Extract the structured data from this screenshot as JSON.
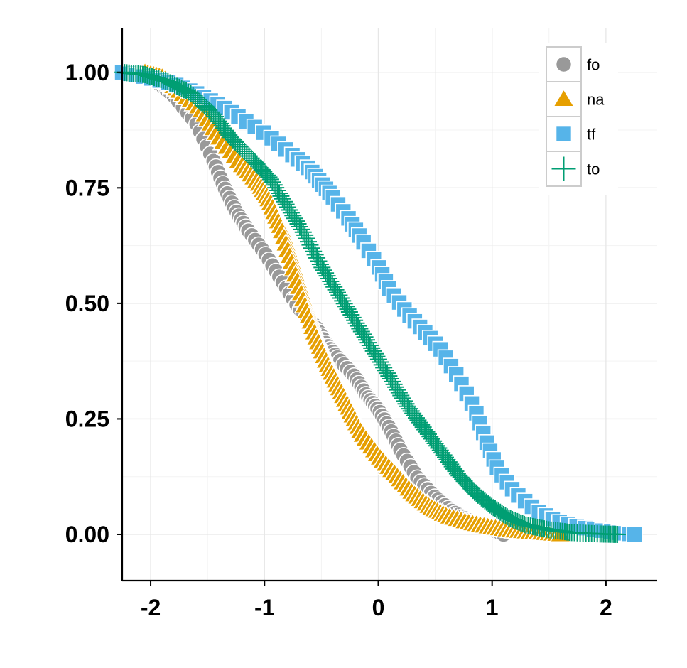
{
  "chart_data": {
    "type": "scatter",
    "title": "",
    "xlabel": "",
    "ylabel": "",
    "xlim": [
      -2.25,
      2.45
    ],
    "ylim": [
      -0.1,
      1.095
    ],
    "x_ticks": [
      -2,
      -1,
      0,
      1,
      2
    ],
    "x_tick_labels": [
      "-2",
      "-1",
      "0",
      "1",
      "2"
    ],
    "y_ticks": [
      0,
      0.25,
      0.5,
      0.75,
      1
    ],
    "y_tick_labels": [
      "0.00",
      "0.25",
      "0.50",
      "0.75",
      "1.00"
    ],
    "grid": true,
    "legend_position": "top-right",
    "series": [
      {
        "name": "fo",
        "marker": "circle",
        "color": "#999999",
        "curve": {
          "x": [
            -2.05,
            -1.95,
            -1.8,
            -1.6,
            -1.45,
            -1.35,
            -1.25,
            -1.15,
            -1.0,
            -0.85,
            -0.7,
            -0.55,
            -0.45,
            -0.35,
            -0.2,
            -0.1,
            0.0,
            0.1,
            0.2,
            0.35,
            0.5,
            0.65,
            0.8,
            0.95,
            1.1
          ],
          "y": [
            1.0,
            0.98,
            0.95,
            0.89,
            0.81,
            0.75,
            0.7,
            0.66,
            0.61,
            0.55,
            0.49,
            0.45,
            0.41,
            0.38,
            0.34,
            0.3,
            0.27,
            0.23,
            0.18,
            0.12,
            0.08,
            0.05,
            0.03,
            0.015,
            0.0
          ]
        },
        "count": 120
      },
      {
        "name": "na",
        "marker": "triangle",
        "color": "#E69F00",
        "curve": {
          "x": [
            -2.05,
            -1.9,
            -1.75,
            -1.55,
            -1.4,
            -1.2,
            -1.05,
            -0.95,
            -0.85,
            -0.75,
            -0.65,
            -0.55,
            -0.45,
            -0.35,
            -0.25,
            -0.15,
            0.0,
            0.15,
            0.3,
            0.45,
            0.6,
            0.8,
            1.0,
            1.2,
            1.4,
            1.6
          ],
          "y": [
            1.0,
            0.99,
            0.96,
            0.92,
            0.86,
            0.8,
            0.76,
            0.72,
            0.66,
            0.58,
            0.5,
            0.43,
            0.37,
            0.32,
            0.27,
            0.22,
            0.17,
            0.13,
            0.09,
            0.06,
            0.04,
            0.025,
            0.015,
            0.008,
            0.004,
            0.0
          ]
        },
        "count": 150
      },
      {
        "name": "tf",
        "marker": "square",
        "color": "#56B4E9",
        "curve": {
          "x": [
            -2.25,
            -2.05,
            -1.8,
            -1.6,
            -1.4,
            -1.2,
            -0.95,
            -0.75,
            -0.6,
            -0.5,
            -0.4,
            -0.25,
            -0.15,
            0.0,
            0.1,
            0.25,
            0.4,
            0.55,
            0.7,
            0.85,
            0.95,
            1.05,
            1.2,
            1.4,
            1.6,
            1.85,
            2.1,
            2.25
          ],
          "y": [
            1.0,
            0.99,
            0.975,
            0.955,
            0.93,
            0.9,
            0.86,
            0.82,
            0.79,
            0.76,
            0.73,
            0.68,
            0.64,
            0.58,
            0.53,
            0.48,
            0.44,
            0.4,
            0.34,
            0.27,
            0.2,
            0.14,
            0.09,
            0.05,
            0.025,
            0.012,
            0.004,
            0.0
          ]
        },
        "count": 90
      },
      {
        "name": "to",
        "marker": "cross",
        "color": "#009E73",
        "curve": {
          "x": [
            -2.25,
            -2.05,
            -1.85,
            -1.65,
            -1.45,
            -1.3,
            -1.1,
            -0.95,
            -0.8,
            -0.65,
            -0.5,
            -0.35,
            -0.2,
            -0.05,
            0.1,
            0.25,
            0.4,
            0.55,
            0.7,
            0.85,
            1.0,
            1.15,
            1.3,
            1.5,
            1.7,
            1.95,
            2.1
          ],
          "y": [
            1.0,
            0.995,
            0.98,
            0.955,
            0.91,
            0.86,
            0.81,
            0.77,
            0.71,
            0.65,
            0.58,
            0.52,
            0.46,
            0.4,
            0.34,
            0.28,
            0.23,
            0.18,
            0.13,
            0.09,
            0.06,
            0.035,
            0.02,
            0.01,
            0.004,
            0.001,
            0.0
          ]
        },
        "count": 260
      }
    ]
  }
}
